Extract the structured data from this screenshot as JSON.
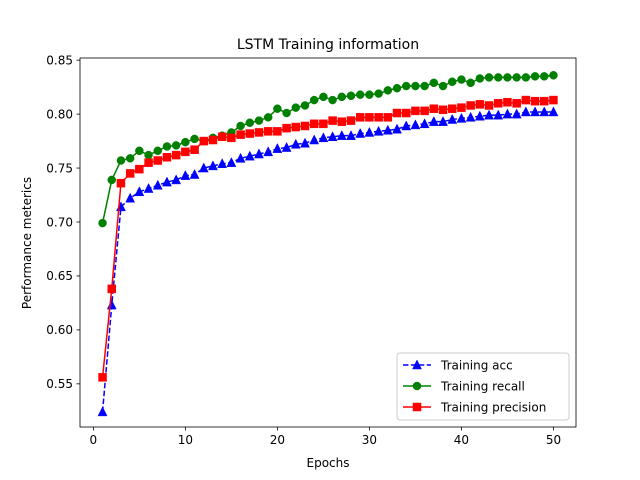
{
  "chart_data": {
    "type": "line",
    "title": "LSTM Training information",
    "xlabel": "Epochs",
    "ylabel": "Performance meterics",
    "xlim": [
      -1.45,
      52.45
    ],
    "ylim": [
      0.51,
      0.852
    ],
    "xticks": [
      0,
      10,
      20,
      30,
      40,
      50
    ],
    "yticks": [
      0.55,
      0.6,
      0.65,
      0.7,
      0.75,
      0.8,
      0.85
    ],
    "ytick_labels": [
      "0.55",
      "0.60",
      "0.65",
      "0.70",
      "0.75",
      "0.80",
      "0.85"
    ],
    "grid": false,
    "legend_position": "lower-right",
    "x": [
      1,
      2,
      3,
      4,
      5,
      6,
      7,
      8,
      9,
      10,
      11,
      12,
      13,
      14,
      15,
      16,
      17,
      18,
      19,
      20,
      21,
      22,
      23,
      24,
      25,
      26,
      27,
      28,
      29,
      30,
      31,
      32,
      33,
      34,
      35,
      36,
      37,
      38,
      39,
      40,
      41,
      42,
      43,
      44,
      45,
      46,
      47,
      48,
      49,
      50
    ],
    "series": [
      {
        "name": "Training acc",
        "color": "#0000ff",
        "marker": "triangle",
        "line_style": "dashed",
        "values": [
          0.524,
          0.623,
          0.714,
          0.722,
          0.728,
          0.731,
          0.734,
          0.737,
          0.739,
          0.743,
          0.744,
          0.75,
          0.752,
          0.754,
          0.755,
          0.759,
          0.761,
          0.763,
          0.765,
          0.768,
          0.769,
          0.772,
          0.773,
          0.776,
          0.778,
          0.779,
          0.78,
          0.78,
          0.782,
          0.783,
          0.784,
          0.785,
          0.786,
          0.789,
          0.79,
          0.791,
          0.793,
          0.793,
          0.795,
          0.796,
          0.797,
          0.798,
          0.799,
          0.799,
          0.8,
          0.8,
          0.802,
          0.802,
          0.802,
          0.802
        ]
      },
      {
        "name": "Training recall",
        "color": "#008000",
        "marker": "circle",
        "line_style": "solid",
        "values": [
          0.699,
          0.739,
          0.757,
          0.759,
          0.766,
          0.762,
          0.766,
          0.77,
          0.771,
          0.774,
          0.777,
          0.775,
          0.778,
          0.78,
          0.783,
          0.789,
          0.792,
          0.794,
          0.797,
          0.805,
          0.801,
          0.806,
          0.808,
          0.813,
          0.816,
          0.813,
          0.816,
          0.817,
          0.818,
          0.818,
          0.819,
          0.822,
          0.824,
          0.826,
          0.826,
          0.826,
          0.829,
          0.826,
          0.83,
          0.832,
          0.829,
          0.833,
          0.834,
          0.834,
          0.834,
          0.834,
          0.834,
          0.835,
          0.835,
          0.836
        ]
      },
      {
        "name": "Training precision",
        "color": "#ff0000",
        "marker": "square",
        "line_style": "solid",
        "values": [
          0.556,
          0.638,
          0.736,
          0.745,
          0.749,
          0.755,
          0.757,
          0.76,
          0.762,
          0.765,
          0.767,
          0.775,
          0.776,
          0.779,
          0.778,
          0.781,
          0.782,
          0.783,
          0.784,
          0.784,
          0.787,
          0.788,
          0.789,
          0.791,
          0.791,
          0.794,
          0.793,
          0.794,
          0.797,
          0.797,
          0.797,
          0.797,
          0.801,
          0.801,
          0.803,
          0.803,
          0.805,
          0.804,
          0.805,
          0.806,
          0.808,
          0.809,
          0.808,
          0.81,
          0.811,
          0.81,
          0.813,
          0.812,
          0.812,
          0.813
        ]
      }
    ]
  }
}
